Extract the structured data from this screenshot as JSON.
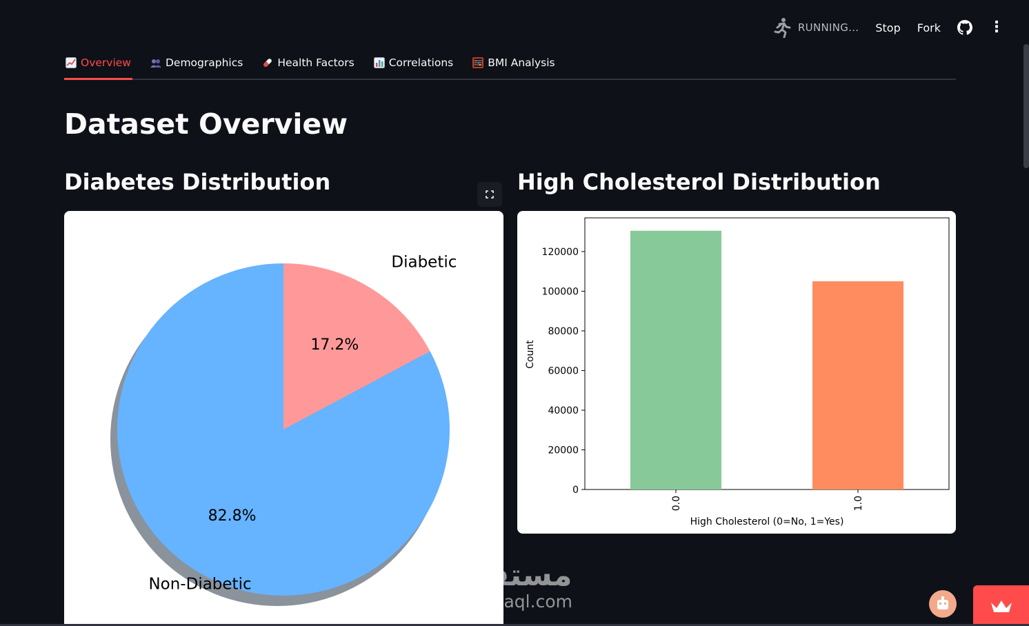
{
  "toolbar": {
    "status": "RUNNING...",
    "stop_label": "Stop",
    "fork_label": "Fork",
    "github_icon": "github-icon",
    "menu_icon": "more-vertical-icon"
  },
  "tabs": [
    {
      "label": "Overview",
      "icon": "chart-increasing-icon",
      "active": true
    },
    {
      "label": "Demographics",
      "icon": "people-icon",
      "active": false
    },
    {
      "label": "Health Factors",
      "icon": "pill-icon",
      "active": false
    },
    {
      "label": "Correlations",
      "icon": "bar-chart-icon",
      "active": false
    },
    {
      "label": "BMI Analysis",
      "icon": "abacus-icon",
      "active": false
    }
  ],
  "page": {
    "title": "Dataset Overview",
    "left_heading": "Diabetes Distribution",
    "right_heading": "High Cholesterol Distribution"
  },
  "colors": {
    "accent": "#ff4b4b",
    "background": "#0e1117",
    "pie_diabetic": "#ff9999",
    "pie_non_diabetic": "#66b3ff",
    "bar_no": "#88c999",
    "bar_yes": "#ff8c5e"
  },
  "chart_data": [
    {
      "type": "pie",
      "title": "Diabetes Distribution",
      "labels": [
        "Diabetic",
        "Non-Diabetic"
      ],
      "values": [
        17.2,
        82.8
      ],
      "percent_labels": [
        "17.2%",
        "82.8%"
      ],
      "shadow": true
    },
    {
      "type": "bar",
      "title": "High Cholesterol Distribution",
      "categories": [
        "0.0",
        "1.0"
      ],
      "values": [
        130500,
        105000
      ],
      "xlabel": "High Cholesterol (0=No, 1=Yes)",
      "ylabel": "Count",
      "ylim": [
        0,
        137000
      ],
      "yticks": [
        0,
        20000,
        40000,
        60000,
        80000,
        100000,
        120000
      ]
    }
  ],
  "watermark": {
    "arabic": "مستقل",
    "latin": "mostaql.com"
  }
}
